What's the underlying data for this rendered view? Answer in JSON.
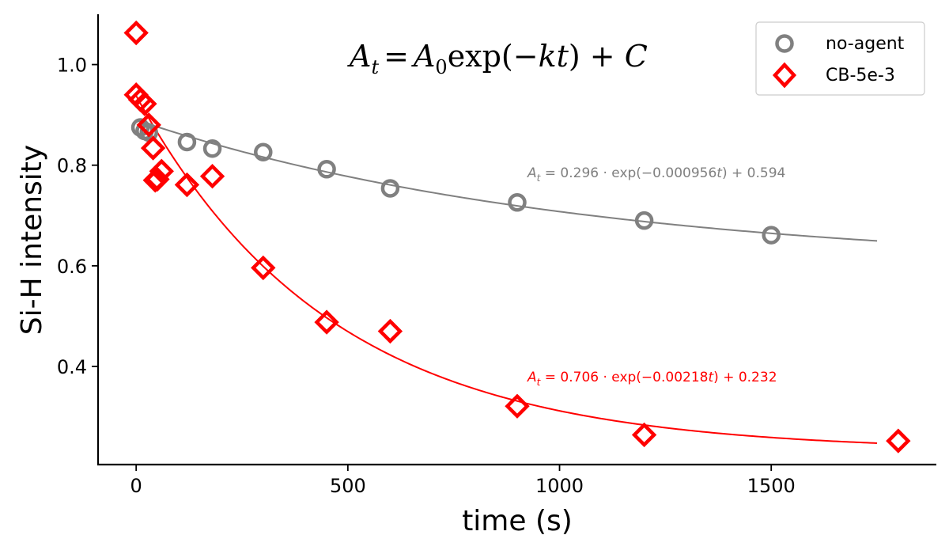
{
  "chart_data": {
    "type": "scatter",
    "xlabel": "time (s)",
    "ylabel": "Si-H intensity",
    "xlim": [
      -90,
      1890
    ],
    "ylim": [
      0.205,
      1.1
    ],
    "x_ticks": [
      0,
      500,
      1000,
      1500
    ],
    "x_tick_labels": [
      "0",
      "500",
      "1000",
      "1500"
    ],
    "y_ticks": [
      0.4,
      0.6,
      0.8,
      1.0
    ],
    "y_tick_labels": [
      "0.4",
      "0.6",
      "0.8",
      "1.0"
    ],
    "grid": false,
    "legend_position": "top-right",
    "annotations": {
      "main_equation": "A_t = A_0 exp(-kt) + C",
      "fit_labels": [
        "A_t = 0.296 · exp(−0.000956t) + 0.594",
        "A_t = 0.706 · exp(−0.00218t) + 0.232"
      ]
    },
    "series": [
      {
        "name": "no-agent",
        "marker": "circle",
        "color": "#808080",
        "x": [
          10,
          20,
          30,
          120,
          180,
          300,
          450,
          600,
          900,
          1200,
          1500
        ],
        "y": [
          0.875,
          0.868,
          0.865,
          0.846,
          0.833,
          0.826,
          0.792,
          0.754,
          0.726,
          0.69,
          0.661
        ],
        "fit": {
          "A0": 0.296,
          "k": 0.000956,
          "C": 0.594,
          "x_range": [
            0,
            1750
          ]
        }
      },
      {
        "name": "CB-5e-3",
        "marker": "diamond",
        "color": "#ff0000",
        "x": [
          0,
          0,
          10,
          20,
          30,
          40,
          45,
          50,
          60,
          120,
          180,
          300,
          450,
          600,
          900,
          1200,
          1800
        ],
        "y": [
          1.063,
          0.94,
          0.93,
          0.922,
          0.88,
          0.834,
          0.77,
          0.772,
          0.788,
          0.761,
          0.778,
          0.596,
          0.488,
          0.47,
          0.321,
          0.264,
          0.252
        ],
        "fit": {
          "A0": 0.706,
          "k": 0.00218,
          "C": 0.232,
          "x_range": [
            0,
            1750
          ]
        }
      }
    ]
  }
}
